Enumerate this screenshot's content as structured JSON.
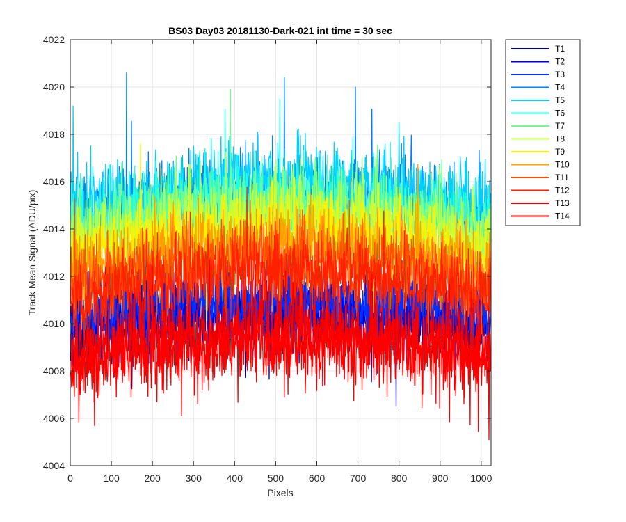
{
  "chart_data": {
    "type": "line",
    "title": "BS03 Day03 20181130-Dark-021 int time = 30 sec",
    "xlabel": "Pixels",
    "ylabel": "Track Mean Signal (ADU/pix)",
    "xlim": [
      0,
      1024
    ],
    "ylim": [
      4004,
      4022
    ],
    "xticks": [
      0,
      100,
      200,
      300,
      400,
      500,
      600,
      700,
      800,
      900,
      1000
    ],
    "yticks": [
      4004,
      4006,
      4008,
      4010,
      4012,
      4014,
      4016,
      4018,
      4020,
      4022
    ],
    "grid": true,
    "legend_position": "outside-top-right",
    "samples_per_series": 1024,
    "series": [
      {
        "name": "T1",
        "color": "#00008f",
        "mean": 4010.3,
        "amplitude": 1.3,
        "edge_drop": 0.6,
        "extremes": [
          [
            792,
            4006.5
          ]
        ]
      },
      {
        "name": "T2",
        "color": "#0000df",
        "mean": 4010.7,
        "amplitude": 1.3,
        "edge_drop": 0.6,
        "extremes": []
      },
      {
        "name": "T3",
        "color": "#0030ff",
        "mean": 4011.0,
        "amplitude": 1.3,
        "edge_drop": 0.6,
        "extremes": []
      },
      {
        "name": "T4",
        "color": "#0080ff",
        "mean": 4015.6,
        "amplitude": 1.5,
        "edge_drop": 1.2,
        "extremes": [
          [
            136,
            4020.6
          ],
          [
            520,
            4020.4
          ],
          [
            693,
            4020.0
          ]
        ]
      },
      {
        "name": "T5",
        "color": "#00cfff",
        "mean": 4016.0,
        "amplitude": 1.5,
        "edge_drop": 1.2,
        "extremes": [
          [
            6,
            4019.2
          ]
        ]
      },
      {
        "name": "T6",
        "color": "#20ffdf",
        "mean": 4015.3,
        "amplitude": 1.5,
        "edge_drop": 1.2,
        "extremes": []
      },
      {
        "name": "T7",
        "color": "#70ff8f",
        "mean": 4015.0,
        "amplitude": 1.5,
        "edge_drop": 1.2,
        "extremes": [
          [
            389,
            4019.9
          ]
        ]
      },
      {
        "name": "T8",
        "color": "#bfff40",
        "mean": 4014.5,
        "amplitude": 1.5,
        "edge_drop": 1.2,
        "extremes": []
      },
      {
        "name": "T9",
        "color": "#ffef00",
        "mean": 4014.0,
        "amplitude": 1.5,
        "edge_drop": 1.2,
        "extremes": []
      },
      {
        "name": "T10",
        "color": "#ff9f00",
        "mean": 4013.3,
        "amplitude": 1.5,
        "edge_drop": 1.2,
        "extremes": []
      },
      {
        "name": "T11",
        "color": "#ff5000",
        "mean": 4012.8,
        "amplitude": 1.5,
        "edge_drop": 1.2,
        "extremes": []
      },
      {
        "name": "T12",
        "color": "#ff2000",
        "mean": 4012.2,
        "amplitude": 1.5,
        "edge_drop": 1.2,
        "extremes": []
      },
      {
        "name": "T13",
        "color": "#ef0000",
        "mean": 4009.6,
        "amplitude": 1.5,
        "edge_drop": 0.8,
        "extremes": []
      },
      {
        "name": "T14",
        "color": "#ff0000",
        "mean": 4009.2,
        "amplitude": 1.6,
        "edge_drop": 0.8,
        "extremes": [
          [
            58,
            4005.7
          ],
          [
            1018,
            4005.1
          ],
          [
            210,
            4006.7
          ]
        ]
      }
    ]
  }
}
